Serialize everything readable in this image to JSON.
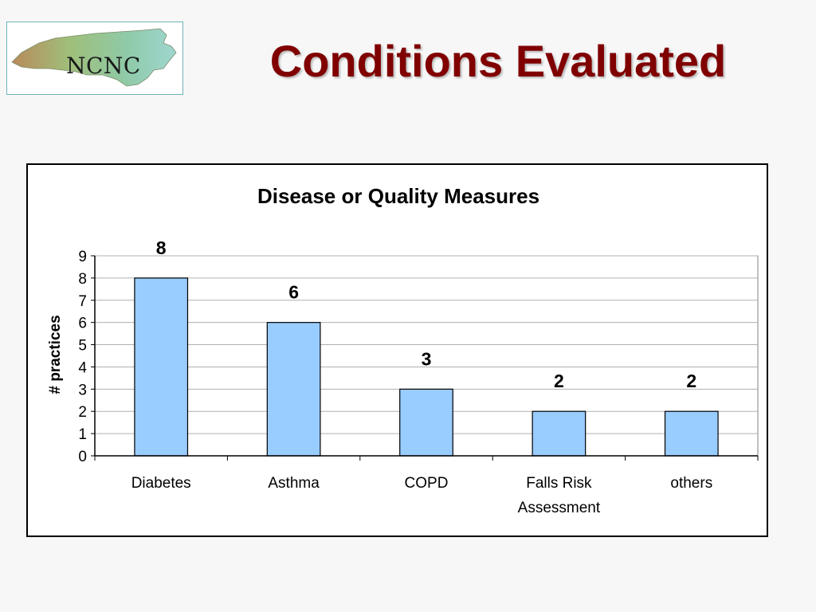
{
  "logo": {
    "text": "NCNC",
    "icon": "north-carolina-map-icon"
  },
  "slide": {
    "title": "Conditions Evaluated"
  },
  "colors": {
    "title": "#800000",
    "bar": "#99ccff",
    "bar_border": "#000000"
  },
  "chart_data": {
    "type": "bar",
    "title": "Disease or Quality Measures",
    "xlabel": "",
    "ylabel": "# practices",
    "categories": [
      "Diabetes",
      "Asthma",
      "COPD",
      "Falls Risk Assessment",
      "others"
    ],
    "category_lines": [
      [
        "Diabetes"
      ],
      [
        "Asthma"
      ],
      [
        "COPD"
      ],
      [
        "Falls Risk",
        "Assessment"
      ],
      [
        "others"
      ]
    ],
    "values": [
      8,
      6,
      3,
      2,
      2
    ],
    "ylim": [
      0,
      9
    ],
    "yticks": [
      0,
      1,
      2,
      3,
      4,
      5,
      6,
      7,
      8,
      9
    ],
    "grid": true,
    "legend": "none",
    "data_labels": true
  }
}
